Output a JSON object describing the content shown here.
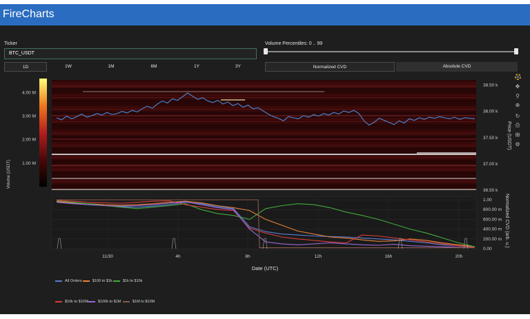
{
  "app": {
    "title": "FireCharts"
  },
  "controls": {
    "ticker_label": "Ticker",
    "ticker_value": "BTC_USDT",
    "percentile_label": "Volume Percentiles: 0 .. 99",
    "timeframes": [
      "1D",
      "1W",
      "1M",
      "6M",
      "1Y",
      "3Y"
    ],
    "active_timeframe": "1D",
    "cvd_modes": [
      "Normalized CVD",
      "Absolute CVD"
    ],
    "active_cvd_mode": "Normalized CVD"
  },
  "modebar": {
    "icons": [
      "color-wheel-icon",
      "pan-icon",
      "zoom-icon",
      "zoom-in-icon",
      "reset-icon",
      "download-icon",
      "autoscale-icon",
      "settings-icon"
    ]
  },
  "colors": {
    "header": "#2a6dc0",
    "price_line": "#4a7fc8",
    "background": "#1e1e1e"
  },
  "chart_data": [
    {
      "type": "heatmap",
      "title": "",
      "ylabel_left": "Volume (USDT)",
      "ylabel_right": "Price (USDT)",
      "colorbar_ticks": [
        "4.00 M",
        "3.00 M",
        "2.00 M",
        "1.00 M"
      ],
      "colorbar_values": [
        4000000,
        3000000,
        2000000,
        1000000
      ],
      "price_ticks": [
        "38.50 k",
        "38.00 k",
        "37.50 k",
        "37.00 k",
        "36.50 k"
      ],
      "price_values": [
        38500,
        38000,
        37500,
        37000,
        36500
      ],
      "ylim": [
        36500,
        38600
      ],
      "series": [
        {
          "type": "line",
          "values": [
            37880,
            37840,
            37910,
            37860,
            37900,
            37950,
            37890,
            37920,
            37960,
            37930,
            37980,
            37940,
            37960,
            38000,
            37970,
            38020,
            37990,
            38050,
            38100,
            38060,
            38140,
            38200,
            38160,
            38240,
            38210,
            38280,
            38350,
            38290,
            38230,
            38260,
            38200,
            38170,
            38210,
            38140,
            38180,
            38110,
            38150,
            38080,
            38120,
            38050,
            38070,
            38010,
            37950,
            37900,
            37870,
            37820,
            37900,
            37880,
            37860,
            37920,
            37890,
            37940,
            37910,
            37960,
            37930,
            37980,
            37950,
            38010,
            37980,
            38020,
            37960,
            37820,
            37740,
            37790,
            37870,
            37830,
            37790,
            37750,
            37820,
            37780,
            37860,
            37830,
            37880,
            37850,
            37890,
            37870,
            37900,
            37880,
            37860,
            37890,
            37850,
            37880,
            37870,
            37860
          ]
        }
      ]
    },
    {
      "type": "line",
      "xlabel": "Date (UTC)",
      "ylabel_right": "Normalized CVD (arb. u.)",
      "x_ticks": [
        "11/30",
        "4h",
        "8h",
        "12h",
        "16h",
        "20h"
      ],
      "y_ticks": [
        "1.00",
        "800.00 m",
        "600.00 m",
        "400.00 m",
        "200.00 m",
        "0.00"
      ],
      "ylim": [
        0,
        1
      ],
      "series": [
        {
          "name": "All Orders",
          "color": "#5b7fd6",
          "values": [
            0.97,
            0.93,
            0.9,
            0.88,
            0.86,
            0.85,
            0.87,
            0.9,
            0.95,
            0.92,
            0.86,
            0.82,
            0.45,
            0.35,
            0.3,
            0.28,
            0.26,
            0.25,
            0.24,
            0.22,
            0.2,
            0.18,
            0.15,
            0.12,
            0.08,
            0.06,
            0.03
          ]
        },
        {
          "name": "$100 to $1k",
          "color": "#e8833a",
          "values": [
            0.96,
            0.94,
            0.92,
            0.9,
            0.89,
            0.9,
            0.92,
            0.95,
            0.97,
            0.94,
            0.88,
            0.84,
            0.78,
            0.6,
            0.48,
            0.36,
            0.3,
            0.24,
            0.22,
            0.18,
            0.15,
            0.16,
            0.2,
            0.17,
            0.12,
            0.08,
            0.04
          ]
        },
        {
          "name": "$1k to $10k",
          "color": "#44aa3c",
          "values": [
            0.98,
            0.95,
            0.92,
            0.88,
            0.85,
            0.82,
            0.85,
            0.88,
            0.92,
            0.8,
            0.72,
            0.68,
            0.6,
            0.82,
            0.88,
            0.92,
            0.9,
            0.84,
            0.75,
            0.68,
            0.6,
            0.5,
            0.4,
            0.32,
            0.22,
            0.12,
            0.04
          ]
        },
        {
          "name": "$10k to $100k",
          "color": "#d63d3d",
          "values": [
            0.99,
            0.97,
            0.95,
            0.94,
            0.93,
            0.95,
            0.97,
            0.98,
            0.9,
            0.85,
            0.8,
            0.78,
            0.42,
            0.32,
            0.24,
            0.2,
            0.17,
            0.14,
            0.12,
            0.28,
            0.26,
            0.22,
            0.18,
            0.14,
            0.1,
            0.06,
            0.03
          ]
        },
        {
          "name": "$100k to $1M",
          "color": "#9a6ad6",
          "values": [
            0.95,
            0.92,
            0.9,
            0.88,
            0.87,
            0.88,
            0.9,
            0.93,
            0.96,
            0.9,
            0.84,
            0.8,
            0.4,
            0.14,
            0.1,
            0.08,
            0.1,
            0.12,
            0.1,
            0.08,
            0.07,
            0.09,
            0.06,
            0.05,
            0.04,
            0.03,
            0.02
          ]
        },
        {
          "name": "$1M to $10M",
          "color": "#8a5a4a",
          "values": [
            1,
            1,
            1,
            1,
            1,
            1,
            1,
            1,
            1,
            1,
            1,
            1,
            0,
            0,
            0,
            0,
            0,
            0,
            0,
            0,
            0,
            0,
            0,
            0,
            0,
            0,
            0
          ]
        }
      ]
    }
  ]
}
